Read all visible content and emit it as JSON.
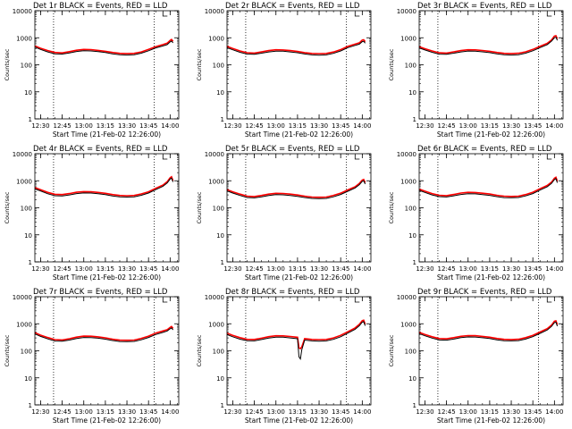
{
  "figure": {
    "time_range_label": "Start Time (21-Feb-02 12:26:00)",
    "y_axis_label": "Counts/sec",
    "x_tick_labels": [
      "12:30",
      "12:45",
      "13:00",
      "13:15",
      "13:30",
      "13:45",
      "14:00"
    ],
    "y_tick_labels": [
      "1",
      "10",
      "100",
      "1000",
      "10000"
    ],
    "colors": {
      "events": "#000000",
      "lld": "#ff0000",
      "axes": "#000000"
    }
  },
  "chart_data": [
    {
      "type": "line",
      "title": "Det 1r BLACK = Events, RED = LLD",
      "xlabel": "Start Time (21-Feb-02 12:26:00)",
      "ylabel": "Counts/sec",
      "x_unit": "time (UTC, 21-Feb-02)",
      "xlim": [
        "12:26",
        "14:06"
      ],
      "ylim": [
        1,
        10000
      ],
      "yscale": "log",
      "vlines": [
        "12:39",
        "13:49"
      ],
      "grid": false,
      "x": [
        "12:26",
        "12:30",
        "12:35",
        "12:40",
        "12:45",
        "12:50",
        "12:55",
        "13:00",
        "13:05",
        "13:10",
        "13:15",
        "13:20",
        "13:25",
        "13:30",
        "13:35",
        "13:40",
        "13:45",
        "13:50",
        "13:55",
        "13:58",
        "14:00",
        "14:01",
        "14:02"
      ],
      "series": [
        {
          "name": "Events",
          "values": [
            450,
            370,
            300,
            255,
            250,
            275,
            310,
            330,
            325,
            305,
            285,
            255,
            235,
            230,
            235,
            270,
            330,
            420,
            500,
            560,
            700,
            760,
            650
          ]
        },
        {
          "name": "LLD",
          "values": [
            500,
            410,
            335,
            285,
            275,
            305,
            345,
            370,
            365,
            340,
            315,
            285,
            265,
            260,
            265,
            300,
            370,
            470,
            560,
            630,
            800,
            860,
            740
          ]
        }
      ]
    },
    {
      "type": "line",
      "title": "Det 2r BLACK = Events, RED = LLD",
      "xlabel": "Start Time (21-Feb-02 12:26:00)",
      "ylabel": "Counts/sec",
      "x_unit": "time (UTC, 21-Feb-02)",
      "xlim": [
        "12:26",
        "14:06"
      ],
      "ylim": [
        1,
        10000
      ],
      "yscale": "log",
      "vlines": [
        "12:39",
        "13:49"
      ],
      "grid": false,
      "x": [
        "12:26",
        "12:30",
        "12:35",
        "12:40",
        "12:45",
        "12:50",
        "12:55",
        "13:00",
        "13:05",
        "13:10",
        "13:15",
        "13:20",
        "13:25",
        "13:30",
        "13:35",
        "13:40",
        "13:45",
        "13:50",
        "13:55",
        "13:58",
        "14:00",
        "14:01",
        "14:02"
      ],
      "series": [
        {
          "name": "Events",
          "values": [
            430,
            360,
            290,
            250,
            245,
            270,
            300,
            320,
            318,
            300,
            280,
            252,
            232,
            228,
            232,
            265,
            325,
            430,
            520,
            580,
            720,
            740,
            630
          ]
        },
        {
          "name": "LLD",
          "values": [
            480,
            400,
            325,
            280,
            272,
            300,
            335,
            358,
            355,
            335,
            312,
            282,
            262,
            258,
            262,
            298,
            365,
            480,
            580,
            650,
            820,
            840,
            720
          ]
        }
      ]
    },
    {
      "type": "line",
      "title": "Det 3r BLACK = Events, RED = LLD",
      "xlabel": "Start Time (21-Feb-02 12:26:00)",
      "ylabel": "Counts/sec",
      "x_unit": "time (UTC, 21-Feb-02)",
      "xlim": [
        "12:26",
        "14:06"
      ],
      "ylim": [
        1,
        10000
      ],
      "yscale": "log",
      "vlines": [
        "12:39",
        "13:49"
      ],
      "grid": false,
      "x": [
        "12:26",
        "12:30",
        "12:35",
        "12:40",
        "12:45",
        "12:50",
        "12:55",
        "13:00",
        "13:05",
        "13:10",
        "13:15",
        "13:20",
        "13:25",
        "13:30",
        "13:35",
        "13:40",
        "13:45",
        "13:50",
        "13:55",
        "13:58",
        "14:00",
        "14:01",
        "14:02"
      ],
      "series": [
        {
          "name": "Events",
          "values": [
            420,
            355,
            290,
            248,
            245,
            270,
            300,
            322,
            320,
            302,
            282,
            255,
            235,
            230,
            236,
            270,
            330,
            430,
            560,
            750,
            1000,
            1050,
            800
          ]
        },
        {
          "name": "LLD",
          "values": [
            470,
            395,
            325,
            278,
            272,
            302,
            336,
            360,
            357,
            337,
            315,
            285,
            265,
            260,
            266,
            302,
            370,
            480,
            620,
            830,
            1150,
            1200,
            920
          ]
        }
      ]
    },
    {
      "type": "line",
      "title": "Det 4r BLACK = Events, RED = LLD",
      "xlabel": "Start Time (21-Feb-02 12:26:00)",
      "ylabel": "Counts/sec",
      "x_unit": "time (UTC, 21-Feb-02)",
      "xlim": [
        "12:26",
        "14:06"
      ],
      "ylim": [
        1,
        10000
      ],
      "yscale": "log",
      "vlines": [
        "12:39",
        "13:49"
      ],
      "grid": false,
      "x": [
        "12:26",
        "12:30",
        "12:35",
        "12:40",
        "12:45",
        "12:50",
        "12:55",
        "13:00",
        "13:05",
        "13:10",
        "13:15",
        "13:20",
        "13:25",
        "13:30",
        "13:35",
        "13:40",
        "13:45",
        "13:50",
        "13:55",
        "13:58",
        "14:00",
        "14:01",
        "14:02"
      ],
      "series": [
        {
          "name": "Events",
          "values": [
            500,
            420,
            330,
            280,
            275,
            300,
            335,
            355,
            350,
            330,
            305,
            275,
            255,
            250,
            255,
            290,
            350,
            470,
            620,
            830,
            1150,
            1250,
            900
          ]
        },
        {
          "name": "LLD",
          "values": [
            560,
            470,
            370,
            315,
            308,
            336,
            375,
            398,
            392,
            370,
            342,
            308,
            286,
            280,
            286,
            325,
            392,
            525,
            690,
            920,
            1280,
            1400,
            1000
          ]
        }
      ]
    },
    {
      "type": "line",
      "title": "Det 5r BLACK = Events, RED = LLD",
      "xlabel": "Start Time (21-Feb-02 12:26:00)",
      "ylabel": "Counts/sec",
      "x_unit": "time (UTC, 21-Feb-02)",
      "xlim": [
        "12:26",
        "14:06"
      ],
      "ylim": [
        1,
        10000
      ],
      "yscale": "log",
      "vlines": [
        "12:39",
        "13:49"
      ],
      "grid": false,
      "x": [
        "12:26",
        "12:30",
        "12:35",
        "12:40",
        "12:45",
        "12:50",
        "12:55",
        "13:00",
        "13:05",
        "13:10",
        "13:15",
        "13:20",
        "13:25",
        "13:30",
        "13:35",
        "13:40",
        "13:45",
        "13:50",
        "13:55",
        "13:58",
        "14:00",
        "14:01",
        "14:02"
      ],
      "series": [
        {
          "name": "Events",
          "values": [
            420,
            350,
            285,
            240,
            232,
            255,
            285,
            305,
            302,
            285,
            265,
            240,
            222,
            218,
            222,
            255,
            310,
            410,
            540,
            720,
            950,
            1000,
            760
          ]
        },
        {
          "name": "LLD",
          "values": [
            470,
            390,
            320,
            270,
            260,
            286,
            320,
            342,
            338,
            320,
            298,
            270,
            250,
            245,
            250,
            287,
            348,
            460,
            600,
            800,
            1060,
            1120,
            850
          ]
        }
      ]
    },
    {
      "type": "line",
      "title": "Det 6r BLACK = Events, RED = LLD",
      "xlabel": "Start Time (21-Feb-02 12:26:00)",
      "ylabel": "Counts/sec",
      "x_unit": "time (UTC, 21-Feb-02)",
      "xlim": [
        "12:26",
        "14:06"
      ],
      "ylim": [
        1,
        10000
      ],
      "yscale": "log",
      "vlines": [
        "12:39",
        "13:49"
      ],
      "grid": false,
      "x": [
        "12:26",
        "12:30",
        "12:35",
        "12:40",
        "12:45",
        "12:50",
        "12:55",
        "13:00",
        "13:05",
        "13:10",
        "13:15",
        "13:20",
        "13:25",
        "13:30",
        "13:35",
        "13:40",
        "13:45",
        "13:50",
        "13:55",
        "13:58",
        "14:00",
        "14:01",
        "14:02"
      ],
      "series": [
        {
          "name": "Events",
          "values": [
            440,
            370,
            300,
            258,
            252,
            278,
            312,
            332,
            328,
            308,
            288,
            258,
            238,
            234,
            240,
            275,
            335,
            450,
            600,
            800,
            1100,
            1200,
            850
          ]
        },
        {
          "name": "LLD",
          "values": [
            490,
            412,
            335,
            290,
            282,
            311,
            350,
            372,
            367,
            345,
            322,
            290,
            268,
            263,
            270,
            308,
            375,
            505,
            670,
            890,
            1230,
            1340,
            950
          ]
        }
      ]
    },
    {
      "type": "line",
      "title": "Det 7r BLACK = Events, RED = LLD",
      "xlabel": "Start Time (21-Feb-02 12:26:00)",
      "ylabel": "Counts/sec",
      "x_unit": "time (UTC, 21-Feb-02)",
      "xlim": [
        "12:26",
        "14:06"
      ],
      "ylim": [
        1,
        10000
      ],
      "yscale": "log",
      "vlines": [
        "12:39",
        "13:49"
      ],
      "grid": false,
      "x": [
        "12:26",
        "12:30",
        "12:35",
        "12:40",
        "12:45",
        "12:50",
        "12:55",
        "13:00",
        "13:05",
        "13:10",
        "13:15",
        "13:20",
        "13:25",
        "13:30",
        "13:35",
        "13:40",
        "13:45",
        "13:50",
        "13:55",
        "13:58",
        "14:00",
        "14:01",
        "14:02"
      ],
      "series": [
        {
          "name": "Events",
          "values": [
            420,
            340,
            275,
            230,
            225,
            250,
            285,
            310,
            308,
            292,
            270,
            240,
            220,
            218,
            222,
            255,
            310,
            400,
            480,
            540,
            650,
            700,
            600
          ]
        },
        {
          "name": "LLD",
          "values": [
            470,
            380,
            308,
            258,
            252,
            280,
            320,
            348,
            345,
            327,
            302,
            270,
            248,
            245,
            250,
            287,
            348,
            450,
            540,
            605,
            730,
            790,
            675
          ]
        }
      ]
    },
    {
      "type": "line",
      "title": "Det 8r BLACK = Events, RED = LLD",
      "xlabel": "Start Time (21-Feb-02 12:26:00)",
      "ylabel": "Counts/sec",
      "x_unit": "time (UTC, 21-Feb-02)",
      "xlim": [
        "12:26",
        "14:06"
      ],
      "ylim": [
        1,
        10000
      ],
      "yscale": "log",
      "vlines": [
        "12:39",
        "13:49"
      ],
      "grid": false,
      "x": [
        "12:26",
        "12:30",
        "12:35",
        "12:40",
        "12:45",
        "12:50",
        "12:55",
        "13:00",
        "13:05",
        "13:10",
        "13:15",
        "13:16",
        "13:17",
        "13:18",
        "13:20",
        "13:25",
        "13:30",
        "13:35",
        "13:40",
        "13:45",
        "13:50",
        "13:55",
        "13:58",
        "14:00",
        "14:01",
        "14:02"
      ],
      "series": [
        {
          "name": "Events",
          "values": [
            400,
            330,
            270,
            235,
            232,
            260,
            295,
            320,
            318,
            300,
            280,
            60,
            50,
            110,
            250,
            232,
            228,
            232,
            265,
            330,
            450,
            620,
            850,
            1150,
            1200,
            850
          ]
        },
        {
          "name": "LLD",
          "values": [
            450,
            370,
            305,
            265,
            262,
            292,
            332,
            360,
            357,
            337,
            315,
            130,
            120,
            140,
            282,
            262,
            258,
            262,
            300,
            372,
            505,
            700,
            950,
            1300,
            1350,
            960
          ]
        }
      ]
    },
    {
      "type": "line",
      "title": "Det 9r BLACK = Events, RED = LLD",
      "xlabel": "Start Time (21-Feb-02 12:26:00)",
      "ylabel": "Counts/sec",
      "x_unit": "time (UTC, 21-Feb-02)",
      "xlim": [
        "12:26",
        "14:06"
      ],
      "ylim": [
        1,
        10000
      ],
      "yscale": "log",
      "vlines": [
        "12:39",
        "13:49"
      ],
      "grid": false,
      "x": [
        "12:26",
        "12:30",
        "12:35",
        "12:40",
        "12:45",
        "12:50",
        "12:55",
        "13:00",
        "13:05",
        "13:10",
        "13:15",
        "13:20",
        "13:25",
        "13:30",
        "13:35",
        "13:40",
        "13:45",
        "13:50",
        "13:55",
        "13:58",
        "14:00",
        "14:01",
        "14:02"
      ],
      "series": [
        {
          "name": "Events",
          "values": [
            430,
            360,
            295,
            252,
            248,
            272,
            305,
            325,
            322,
            304,
            284,
            255,
            235,
            232,
            238,
            272,
            332,
            440,
            590,
            800,
            1100,
            1150,
            820
          ]
        },
        {
          "name": "LLD",
          "values": [
            480,
            402,
            330,
            283,
            278,
            305,
            342,
            365,
            361,
            341,
            319,
            286,
            264,
            261,
            267,
            305,
            372,
            495,
            660,
            890,
            1230,
            1280,
            920
          ]
        }
      ]
    }
  ]
}
